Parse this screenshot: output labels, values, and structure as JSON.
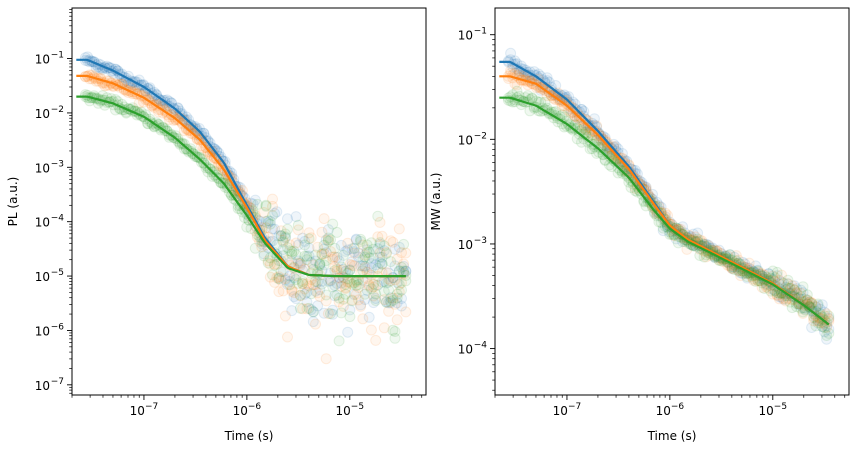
{
  "chart_data": [
    {
      "type": "scatter",
      "xlabel": "Time (s)",
      "ylabel": "PL (a.u.)",
      "xscale": "log",
      "yscale": "log",
      "xlim": [
        2e-08,
        5.5e-05
      ],
      "ylim": [
        6.5e-08,
        0.85
      ],
      "x_ticks": [
        {
          "value": 1e-07,
          "base": "10",
          "exp": "−7"
        },
        {
          "value": 1e-06,
          "base": "10",
          "exp": "−6"
        },
        {
          "value": 1e-05,
          "base": "10",
          "exp": "−5"
        }
      ],
      "y_ticks": [
        {
          "value": 1e-07,
          "base": "10",
          "exp": "−7"
        },
        {
          "value": 1e-06,
          "base": "10",
          "exp": "−6"
        },
        {
          "value": 1e-05,
          "base": "10",
          "exp": "−5"
        },
        {
          "value": 0.0001,
          "base": "10",
          "exp": "−4"
        },
        {
          "value": 0.001,
          "base": "10",
          "exp": "−3"
        },
        {
          "value": 0.01,
          "base": "10",
          "exp": "−2"
        },
        {
          "value": 0.1,
          "base": "10",
          "exp": "−1"
        }
      ],
      "grid": false,
      "series": [
        {
          "color": "#1f77b4",
          "fit": {
            "x": [
              2.2e-08,
              2.8e-08,
              5e-08,
              1e-07,
              2e-07,
              3.5e-07,
              6e-07,
              1e-06,
              1.5e-06,
              2.5e-06,
              4e-06,
              7e-06,
              1.5e-05,
              3.5e-05
            ],
            "y": [
              0.095,
              0.095,
              0.06,
              0.03,
              0.012,
              0.0045,
              0.0012,
              0.0002,
              5e-05,
              1.5e-05,
              1.05e-05,
              1e-05,
              1e-05,
              1e-05
            ]
          }
        },
        {
          "color": "#ff7f0e",
          "fit": {
            "x": [
              2.2e-08,
              2.8e-08,
              5e-08,
              1e-07,
              2e-07,
              3.5e-07,
              6e-07,
              1e-06,
              1.5e-06,
              2.5e-06,
              4e-06,
              7e-06,
              1.5e-05,
              3.5e-05
            ],
            "y": [
              0.048,
              0.048,
              0.035,
              0.019,
              0.008,
              0.0032,
              0.0009,
              0.00018,
              4.5e-05,
              1.5e-05,
              1.05e-05,
              1e-05,
              1e-05,
              1e-05
            ]
          }
        },
        {
          "color": "#2ca02c",
          "fit": {
            "x": [
              2.2e-08,
              2.8e-08,
              5e-08,
              1e-07,
              2e-07,
              3.5e-07,
              6e-07,
              1e-06,
              1.5e-06,
              2.5e-06,
              4e-06,
              7e-06,
              1.5e-05,
              3.5e-05
            ],
            "y": [
              0.02,
              0.02,
              0.015,
              0.0085,
              0.0035,
              0.0014,
              0.0005,
              0.00013,
              4e-05,
              1.4e-05,
              1.05e-05,
              1e-05,
              1e-05,
              1e-05
            ]
          }
        }
      ]
    },
    {
      "type": "scatter",
      "xlabel": "Time (s)",
      "ylabel": "MW (a.u.)",
      "xscale": "log",
      "yscale": "log",
      "xlim": [
        2e-08,
        5.5e-05
      ],
      "ylim": [
        3.6e-05,
        0.18
      ],
      "x_ticks": [
        {
          "value": 1e-07,
          "base": "10",
          "exp": "−7"
        },
        {
          "value": 1e-06,
          "base": "10",
          "exp": "−6"
        },
        {
          "value": 1e-05,
          "base": "10",
          "exp": "−5"
        }
      ],
      "y_ticks": [
        {
          "value": 0.0001,
          "base": "10",
          "exp": "−4"
        },
        {
          "value": 0.001,
          "base": "10",
          "exp": "−3"
        },
        {
          "value": 0.01,
          "base": "10",
          "exp": "−2"
        },
        {
          "value": 0.1,
          "base": "10",
          "exp": "−1"
        }
      ],
      "grid": false,
      "series": [
        {
          "color": "#1f77b4",
          "fit": {
            "x": [
              2.2e-08,
              2.8e-08,
              5e-08,
              1e-07,
              2e-07,
              4e-07,
              7e-07,
              1e-06,
              1.5e-06,
              2.5e-06,
              5e-06,
              1e-05,
              2e-05,
              3.5e-05
            ],
            "y": [
              0.055,
              0.055,
              0.04,
              0.024,
              0.012,
              0.0055,
              0.0025,
              0.0015,
              0.0011,
              0.00085,
              0.0006,
              0.00042,
              0.00026,
              0.00017
            ]
          }
        },
        {
          "color": "#ff7f0e",
          "fit": {
            "x": [
              2.2e-08,
              2.8e-08,
              5e-08,
              1e-07,
              2e-07,
              4e-07,
              7e-07,
              1e-06,
              1.5e-06,
              2.5e-06,
              5e-06,
              1e-05,
              2e-05,
              3.5e-05
            ],
            "y": [
              0.04,
              0.04,
              0.034,
              0.021,
              0.011,
              0.0052,
              0.0024,
              0.0015,
              0.0011,
              0.00085,
              0.0006,
              0.00042,
              0.00026,
              0.00017
            ]
          }
        },
        {
          "color": "#2ca02c",
          "fit": {
            "x": [
              2.2e-08,
              2.8e-08,
              5e-08,
              1e-07,
              2e-07,
              4e-07,
              7e-07,
              1e-06,
              1.5e-06,
              2.5e-06,
              5e-06,
              1e-05,
              2e-05,
              3.5e-05
            ],
            "y": [
              0.025,
              0.025,
              0.021,
              0.014,
              0.0082,
              0.0043,
              0.0021,
              0.0014,
              0.00105,
              0.00082,
              0.00058,
              0.00041,
              0.00026,
              0.00017
            ]
          }
        }
      ]
    }
  ]
}
